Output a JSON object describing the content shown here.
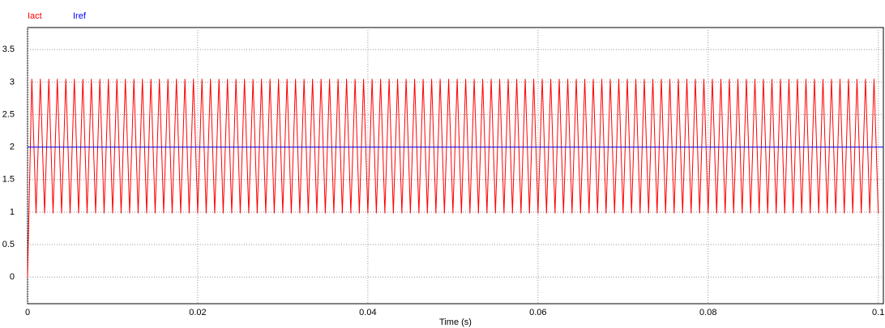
{
  "chart_data": {
    "type": "line",
    "xlabel": "Time (s)",
    "xlim": [
      0,
      0.1006
    ],
    "ylim": [
      -0.41,
      3.84
    ],
    "xticks": [
      0,
      0.02,
      0.04,
      0.06,
      0.08,
      0.1
    ],
    "yticks": [
      0,
      0.5,
      1,
      1.5,
      2,
      2.5,
      3,
      3.5
    ],
    "grid": true,
    "legend": "top-left",
    "series": [
      {
        "name": "Iact",
        "color": "#ff0000",
        "x": [
          0,
          0.0005,
          0.001,
          0.0015,
          0.002,
          0.0025,
          0.003,
          0.0035,
          0.004,
          0.0045,
          0.005,
          0.0055,
          0.006,
          0.0065,
          0.007,
          0.0075,
          0.008,
          0.0085,
          0.009,
          0.0095,
          0.01,
          0.0105,
          0.011,
          0.0115,
          0.012,
          0.0125,
          0.013,
          0.0135,
          0.014,
          0.0145,
          0.015,
          0.0155,
          0.016,
          0.0165,
          0.017,
          0.0175,
          0.018,
          0.0185,
          0.019,
          0.0195,
          0.02,
          0.0205,
          0.021,
          0.0215,
          0.022,
          0.0225,
          0.023,
          0.0235,
          0.024,
          0.0245,
          0.025,
          0.0255,
          0.026,
          0.0265,
          0.027,
          0.0275,
          0.028,
          0.0285,
          0.029,
          0.0295,
          0.03,
          0.0305,
          0.031,
          0.0315,
          0.032,
          0.0325,
          0.033,
          0.0335,
          0.034,
          0.0345,
          0.035,
          0.0355,
          0.036,
          0.0365,
          0.037,
          0.0375,
          0.038,
          0.0385,
          0.039,
          0.0395,
          0.04,
          0.0405,
          0.041,
          0.0415,
          0.042,
          0.0425,
          0.043,
          0.0435,
          0.044,
          0.0445,
          0.045,
          0.0455,
          0.046,
          0.0465,
          0.047,
          0.0475,
          0.048,
          0.0485,
          0.049,
          0.0495,
          0.05,
          0.0505,
          0.051,
          0.0515,
          0.052,
          0.0525,
          0.053,
          0.0535,
          0.054,
          0.0545,
          0.055,
          0.0555,
          0.056,
          0.0565,
          0.057,
          0.0575,
          0.058,
          0.0585,
          0.059,
          0.0595,
          0.06,
          0.0605,
          0.061,
          0.0615,
          0.062,
          0.0625,
          0.063,
          0.0635,
          0.064,
          0.0645,
          0.065,
          0.0655,
          0.066,
          0.0665,
          0.067,
          0.0675,
          0.068,
          0.0685,
          0.069,
          0.0695,
          0.07,
          0.0705,
          0.071,
          0.0715,
          0.072,
          0.0725,
          0.073,
          0.0735,
          0.074,
          0.0745,
          0.075,
          0.0755,
          0.076,
          0.0765,
          0.077,
          0.0775,
          0.078,
          0.0785,
          0.079,
          0.0795,
          0.08,
          0.0805,
          0.081,
          0.0815,
          0.082,
          0.0825,
          0.083,
          0.0835,
          0.084,
          0.0845,
          0.085,
          0.0855,
          0.086,
          0.0865,
          0.087,
          0.0875,
          0.088,
          0.0885,
          0.089,
          0.0895,
          0.09,
          0.0905,
          0.091,
          0.0915,
          0.092,
          0.0925,
          0.093,
          0.0935,
          0.094,
          0.0945,
          0.095,
          0.0955,
          0.096,
          0.0965,
          0.097,
          0.0975,
          0.098,
          0.0985,
          0.099,
          0.0995,
          0.1
        ],
        "values": [
          0,
          3.05,
          0.98,
          3.05,
          0.98,
          3.05,
          0.98,
          3.05,
          0.98,
          3.05,
          0.98,
          3.05,
          0.98,
          3.05,
          0.98,
          3.05,
          0.98,
          3.05,
          0.98,
          3.05,
          0.98,
          3.05,
          0.98,
          3.05,
          0.98,
          3.05,
          0.98,
          3.05,
          0.98,
          3.05,
          0.98,
          3.05,
          0.98,
          3.05,
          0.98,
          3.05,
          0.98,
          3.05,
          0.98,
          3.05,
          0.98,
          3.05,
          0.98,
          3.05,
          0.98,
          3.05,
          0.98,
          3.05,
          0.98,
          3.05,
          0.98,
          3.05,
          0.98,
          3.05,
          0.98,
          3.05,
          0.98,
          3.05,
          0.98,
          3.05,
          0.98,
          3.05,
          0.98,
          3.05,
          0.98,
          3.05,
          0.98,
          3.05,
          0.98,
          3.05,
          0.98,
          3.05,
          0.98,
          3.05,
          0.98,
          3.05,
          0.98,
          3.05,
          0.98,
          3.05,
          0.98,
          3.05,
          0.98,
          3.05,
          0.98,
          3.05,
          0.98,
          3.05,
          0.98,
          3.05,
          0.98,
          3.05,
          0.98,
          3.05,
          0.98,
          3.05,
          0.98,
          3.05,
          0.98,
          3.05,
          0.98,
          3.05,
          0.98,
          3.05,
          0.98,
          3.05,
          0.98,
          3.05,
          0.98,
          3.05,
          0.98,
          3.05,
          0.98,
          3.05,
          0.98,
          3.05,
          0.98,
          3.05,
          0.98,
          3.05,
          0.98,
          3.05,
          0.98,
          3.05,
          0.98,
          3.05,
          0.98,
          3.05,
          0.98,
          3.05,
          0.98,
          3.05,
          0.98,
          3.05,
          0.98,
          3.05,
          0.98,
          3.05,
          0.98,
          3.05,
          0.98,
          3.05,
          0.98,
          3.05,
          0.98,
          3.05,
          0.98,
          3.05,
          0.98,
          3.05,
          0.98,
          3.05,
          0.98,
          3.05,
          0.98,
          3.05,
          0.98,
          3.05,
          0.98,
          3.05,
          0.98,
          3.05,
          0.98,
          3.05,
          0.98,
          3.05,
          0.98,
          3.05,
          0.98,
          3.05,
          0.98,
          3.05,
          0.98,
          3.05,
          0.98,
          3.05,
          0.98,
          3.05,
          0.98,
          3.05,
          0.98,
          3.05,
          0.98,
          3.05,
          0.98,
          3.05,
          0.98,
          3.05,
          0.98,
          3.05,
          0.98,
          3.05,
          0.98,
          3.05,
          0.98,
          3.05,
          0.98,
          3.05,
          0.98,
          3.05,
          0.98
        ]
      },
      {
        "name": "Iref",
        "color": "#0000ff",
        "x": [
          0,
          0.1006
        ],
        "values": [
          2,
          2
        ]
      }
    ]
  }
}
